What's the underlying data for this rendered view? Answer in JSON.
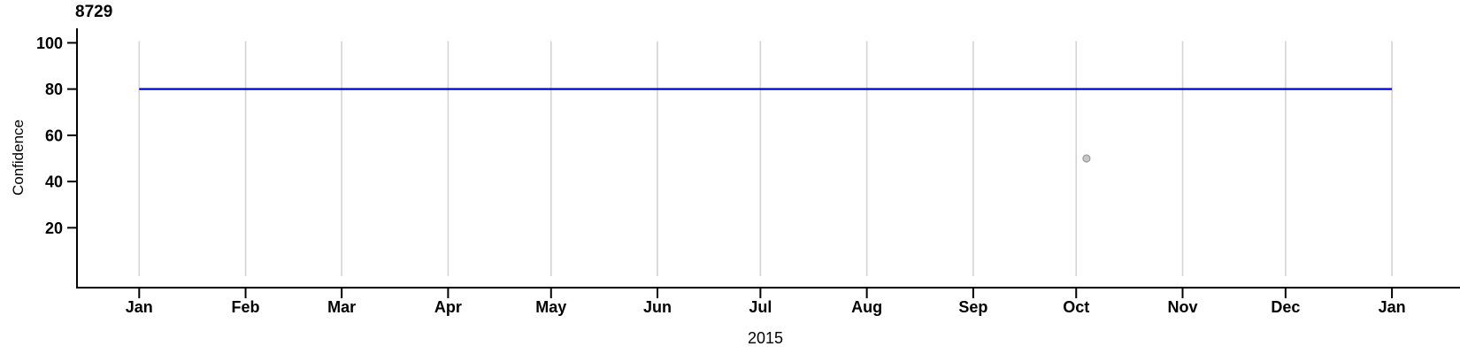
{
  "chart_data": {
    "type": "line",
    "title": "8729",
    "ylabel": "Confidence",
    "xlabel": "2015",
    "grid": "vertical-monthly-gridlines-only",
    "legend": "none",
    "ylim": [
      0,
      106
    ],
    "y_ticks": [
      20,
      40,
      60,
      80,
      100
    ],
    "x_axis_span_days": 365,
    "x_ticks": [
      {
        "label": "Jan",
        "day": 0
      },
      {
        "label": "Feb",
        "day": 31
      },
      {
        "label": "Mar",
        "day": 59
      },
      {
        "label": "Apr",
        "day": 90
      },
      {
        "label": "May",
        "day": 120
      },
      {
        "label": "Jun",
        "day": 151
      },
      {
        "label": "Jul",
        "day": 181
      },
      {
        "label": "Aug",
        "day": 212
      },
      {
        "label": "Sep",
        "day": 243
      },
      {
        "label": "Oct",
        "day": 273
      },
      {
        "label": "Nov",
        "day": 304
      },
      {
        "label": "Dec",
        "day": 334
      },
      {
        "label": "Jan",
        "day": 365
      }
    ],
    "series": [
      {
        "name": "confidence-level-line",
        "type": "line",
        "color": "#0000CD",
        "stroke_width": 2.2,
        "points": [
          {
            "day": 0,
            "approx_date": "2015-01-01",
            "value": 80
          },
          {
            "day": 365,
            "approx_date": "2016-01-01",
            "value": 80
          }
        ]
      }
    ],
    "scatter_points": [
      {
        "day": 276,
        "approx_date": "2015-10-04",
        "value": 50,
        "fill": "#C6C6C6",
        "stroke": "#9A9A9A",
        "radius": 4
      }
    ],
    "colors": {
      "axis": "#000000",
      "gridline": "#D4D4D4",
      "background": "#FFFFFF",
      "line": "#0000CD",
      "point_fill": "#C6C6C6",
      "point_stroke": "#9A9A9A"
    }
  }
}
